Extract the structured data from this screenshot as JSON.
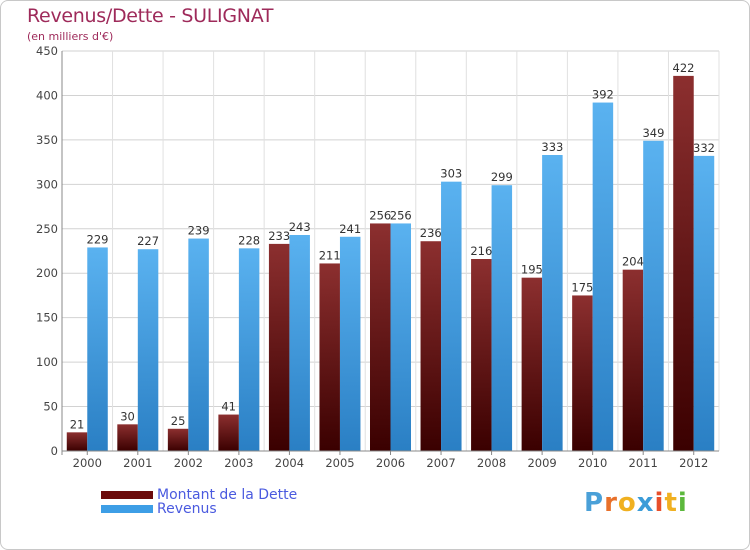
{
  "title": "Revenus/Dette - SULIGNAT",
  "subtitle": "(en milliers d'€)",
  "logo": {
    "letters": [
      "P",
      "r",
      "o",
      "x",
      "i",
      "t",
      "i"
    ],
    "colors": [
      "#4aa0d8",
      "#e8702a",
      "#f0b020",
      "#3b9cd8",
      "#e84f2a",
      "#f0b020",
      "#5cb83c"
    ]
  },
  "legend": [
    {
      "label": "Montant de la Dette",
      "color": "#6b0a0a"
    },
    {
      "label": "Revenus",
      "color": "#3d9ee6"
    }
  ],
  "chart_data": {
    "type": "bar",
    "title": "Revenus/Dette - SULIGNAT",
    "subtitle": "(en milliers d'€)",
    "categories": [
      "2000",
      "2001",
      "2002",
      "2003",
      "2004",
      "2005",
      "2006",
      "2007",
      "2008",
      "2009",
      "2010",
      "2011",
      "2012"
    ],
    "series": [
      {
        "name": "Montant de la Dette",
        "color": "#6b0a0a",
        "values": [
          21,
          30,
          25,
          41,
          233,
          211,
          256,
          236,
          216,
          195,
          175,
          204,
          422
        ]
      },
      {
        "name": "Revenus",
        "color": "#3d9ee6",
        "values": [
          229,
          227,
          239,
          228,
          243,
          241,
          256,
          303,
          299,
          333,
          392,
          349,
          332
        ]
      }
    ],
    "ylim": [
      0,
      450
    ],
    "yticks": [
      0,
      50,
      100,
      150,
      200,
      250,
      300,
      350,
      400,
      450
    ],
    "grid": true,
    "legend_position": "bottom-left"
  }
}
